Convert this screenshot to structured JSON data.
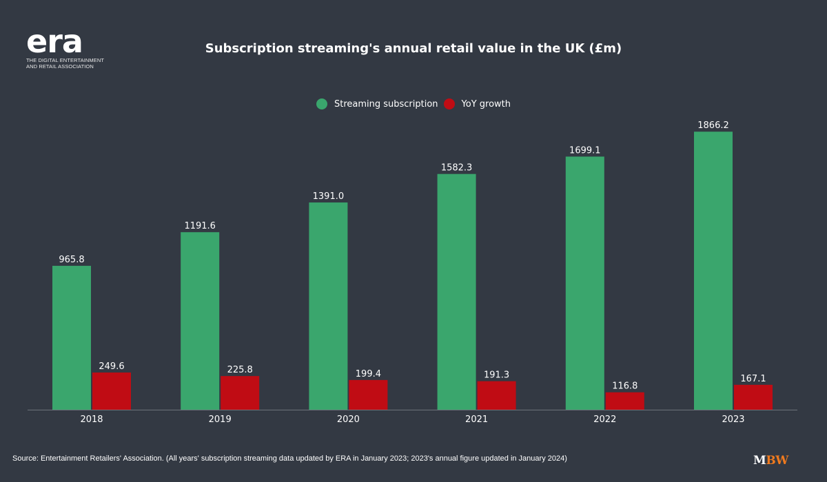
{
  "logo": {
    "wordmark": "era",
    "subtitle_line1": "THE DIGITAL ENTERTAINMENT",
    "subtitle_line2": "AND RETAIL ASSOCIATION"
  },
  "colors": {
    "background": "#333943",
    "streaming": "#3aa66d",
    "yoy": "#c00c14",
    "axis": "#6c727b",
    "text": "#ffffff",
    "brand_orange": "#f07a1e"
  },
  "chart_data": {
    "type": "bar",
    "title": "Subscription streaming's annual retail value in the UK (£m)",
    "xlabel": "",
    "ylabel": "",
    "categories": [
      "2018",
      "2019",
      "2020",
      "2021",
      "2022",
      "2023"
    ],
    "series": [
      {
        "name": "Streaming subscription",
        "values": [
          965.8,
          1191.6,
          1391.0,
          1582.3,
          1699.1,
          1866.2
        ],
        "labels": [
          "965.8",
          "1191.6",
          "1391.0",
          "1582.3",
          "1699.1",
          "1866.2"
        ]
      },
      {
        "name": "YoY growth",
        "values": [
          249.6,
          225.8,
          199.4,
          191.3,
          116.8,
          167.1
        ],
        "labels": [
          "249.6",
          "225.8",
          "199.4",
          "191.3",
          "116.8",
          "167.1"
        ]
      }
    ],
    "ylim": [
      0,
      2000
    ],
    "grid": false,
    "legend_position": "top-center",
    "y_axis_visible": false
  },
  "footer": {
    "source": "Source: Entertainment Retailers' Association. (All years' subscription streaming data updated by ERA in January 2023; 2023's annual figure updated in January 2024)",
    "brand_m": "M",
    "brand_bw": "BW"
  }
}
